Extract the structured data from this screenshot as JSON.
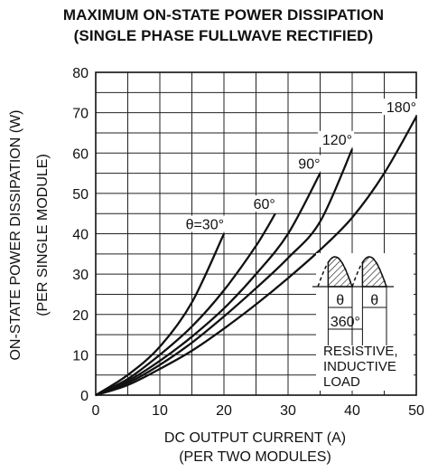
{
  "chart_data": {
    "type": "line",
    "title": "MAXIMUM ON-STATE POWER DISSIPATION",
    "subtitle": "(SINGLE PHASE FULLWAVE RECTIFIED)",
    "xlabel": "DC OUTPUT CURRENT (A)",
    "xlabel_sub": "(PER TWO MODULES)",
    "ylabel": "ON-STATE POWER DISSIPATION (W)",
    "ylabel_sub": "(PER SINGLE MODULE)",
    "xlim": [
      0,
      50
    ],
    "ylim": [
      0,
      80
    ],
    "x_ticks": [
      "0",
      "10",
      "20",
      "30",
      "40",
      "50"
    ],
    "y_ticks": [
      "0",
      "10",
      "20",
      "30",
      "40",
      "50",
      "60",
      "70",
      "80"
    ],
    "grid": true,
    "series": [
      {
        "name": "θ=30°",
        "points": [
          [
            0,
            0
          ],
          [
            5,
            5
          ],
          [
            10,
            12
          ],
          [
            15,
            23
          ],
          [
            20,
            40
          ]
        ]
      },
      {
        "name": "60°",
        "points": [
          [
            0,
            0
          ],
          [
            5,
            4
          ],
          [
            10,
            10
          ],
          [
            15,
            17
          ],
          [
            20,
            26
          ],
          [
            25,
            37
          ],
          [
            28,
            45
          ]
        ]
      },
      {
        "name": "90°",
        "points": [
          [
            0,
            0
          ],
          [
            5,
            3.5
          ],
          [
            10,
            8.5
          ],
          [
            15,
            14.5
          ],
          [
            20,
            21.5
          ],
          [
            25,
            30
          ],
          [
            30,
            40
          ],
          [
            35,
            55
          ]
        ]
      },
      {
        "name": "120°",
        "points": [
          [
            0,
            0
          ],
          [
            5,
            3
          ],
          [
            10,
            7.5
          ],
          [
            15,
            13
          ],
          [
            20,
            19.5
          ],
          [
            25,
            26.5
          ],
          [
            30,
            34
          ],
          [
            35,
            43
          ],
          [
            40,
            61
          ]
        ]
      },
      {
        "name": "180°",
        "points": [
          [
            0,
            0
          ],
          [
            5,
            2.5
          ],
          [
            10,
            6.5
          ],
          [
            15,
            11
          ],
          [
            20,
            16.5
          ],
          [
            25,
            22.5
          ],
          [
            30,
            29
          ],
          [
            35,
            36
          ],
          [
            40,
            44
          ],
          [
            45,
            55
          ],
          [
            50,
            69
          ]
        ]
      }
    ],
    "inset": {
      "angle_label": "θ",
      "period_label": "360°",
      "load_lines": [
        "RESISTIVE,",
        "INDUCTIVE",
        "LOAD"
      ]
    }
  }
}
